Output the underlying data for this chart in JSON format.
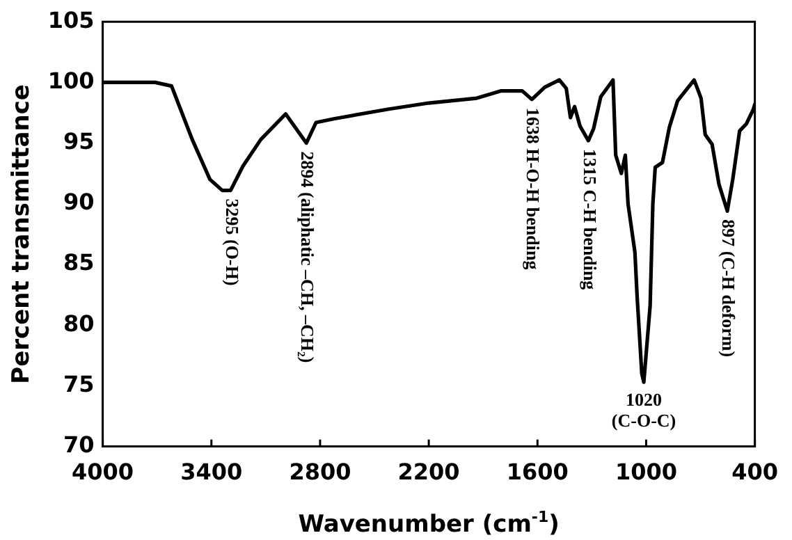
{
  "chart_data": {
    "type": "line",
    "xlabel": "Wavenumber (cm$^{-1}$)",
    "ylabel": "Percent transmittance",
    "xlim": [
      4000,
      400
    ],
    "xticks": [
      4000,
      3400,
      2800,
      2200,
      1600,
      1000,
      400
    ],
    "ylim": [
      70,
      105
    ],
    "yticks": [
      70,
      75,
      80,
      85,
      90,
      95,
      100,
      105
    ],
    "grid": false,
    "legend": false,
    "marker": "none",
    "line_style": "solid",
    "series": [
      {
        "color": "#000000",
        "x": [
          4000,
          3711,
          3620,
          3506,
          3408,
          3340,
          3294,
          3226,
          3127,
          2990,
          2876,
          2822,
          2724,
          2420,
          2200,
          1935,
          1800,
          1684,
          1631,
          1560,
          1479,
          1441,
          1418,
          1395,
          1365,
          1319,
          1290,
          1251,
          1183,
          1168,
          1137,
          1115,
          1100,
          1062,
          1050,
          1024,
          1013,
          978,
          963,
          950,
          910,
          872,
          826,
          735,
          697,
          674,
          636,
          598,
          552,
          522,
          484,
          446,
          408,
          400
        ],
        "values": [
          100,
          100,
          99.7,
          95.3,
          92,
          91.1,
          91.1,
          93.1,
          95.3,
          97.4,
          95,
          96.7,
          97,
          97.8,
          98.3,
          98.7,
          99.3,
          99.3,
          98.6,
          99.6,
          100.2,
          99.5,
          97.1,
          98,
          96.4,
          95.2,
          96.2,
          98.8,
          100.2,
          94,
          92.5,
          94,
          90,
          86,
          82.4,
          76,
          75.3,
          81.6,
          90,
          93,
          93.4,
          96.3,
          98.5,
          100.2,
          98.7,
          95.7,
          94.9,
          91.6,
          89.4,
          92,
          96,
          96.6,
          97.8,
          98.2
        ]
      }
    ],
    "annotations": [
      {
        "text": "3295 (O-H)",
        "x": 3294,
        "y": 91.1
      },
      {
        "text": "2894 (aliphatic –CH, –CH₂)",
        "x": 2876,
        "y": 95
      },
      {
        "text": "1638 H-O-H bending",
        "x": 1631,
        "y": 98.6
      },
      {
        "text": "1315 C-H bending",
        "x": 1319,
        "y": 95.2
      },
      {
        "text": "1020 (C-O-C)",
        "x": 1013,
        "y": 75.3
      },
      {
        "text": "897 (C-H deform)",
        "x": 552,
        "y": 89.4
      }
    ]
  }
}
